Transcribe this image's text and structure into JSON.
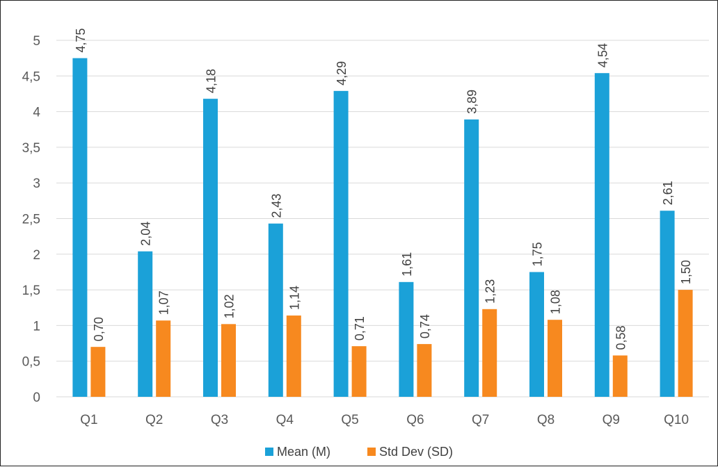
{
  "chart_data": {
    "type": "bar",
    "categories": [
      "Q1",
      "Q2",
      "Q3",
      "Q4",
      "Q5",
      "Q6",
      "Q7",
      "Q8",
      "Q9",
      "Q10"
    ],
    "series": [
      {
        "name": "Mean (M)",
        "color": "#1ba1d8",
        "values": [
          4.75,
          2.04,
          4.18,
          2.43,
          4.29,
          1.61,
          3.89,
          1.75,
          4.54,
          2.61
        ],
        "labels": [
          "4,75",
          "2,04",
          "4,18",
          "2,43",
          "4,29",
          "1,61",
          "3,89",
          "1,75",
          "4,54",
          "2,61"
        ]
      },
      {
        "name": "Std Dev (SD)",
        "color": "#f7891f",
        "values": [
          0.7,
          1.07,
          1.02,
          1.14,
          0.71,
          0.74,
          1.23,
          1.08,
          0.58,
          1.5
        ],
        "labels": [
          "0,70",
          "1,07",
          "1,02",
          "1,14",
          "0,71",
          "0,74",
          "1,23",
          "1,08",
          "0,58",
          "1,50"
        ]
      }
    ],
    "y_ticks": [
      0,
      0.5,
      1,
      1.5,
      2,
      2.5,
      3,
      3.5,
      4,
      4.5,
      5
    ],
    "y_tick_labels": [
      "0",
      "0,5",
      "1",
      "1,5",
      "2",
      "2,5",
      "3",
      "3,5",
      "4",
      "4,5",
      "5"
    ],
    "ylim": [
      0,
      5
    ],
    "grid": true,
    "legend_position": "bottom",
    "title": "",
    "xlabel": "",
    "ylabel": ""
  }
}
